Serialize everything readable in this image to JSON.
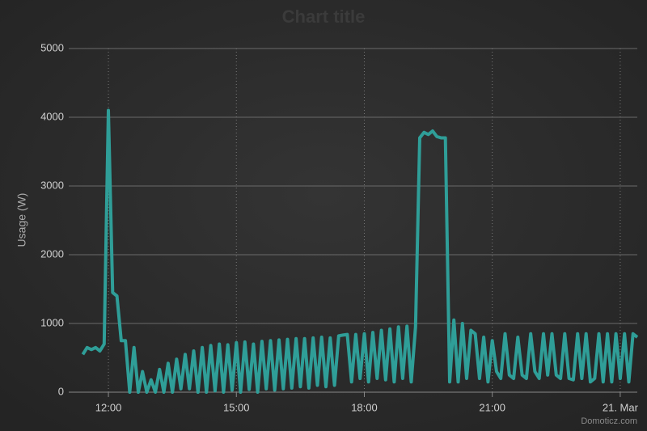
{
  "chart_data": {
    "type": "line",
    "title": "Chart title",
    "y_label": "Usage (W)",
    "credits": "Domoticz.com",
    "x": [
      11.4,
      11.5,
      11.6,
      11.7,
      11.8,
      11.9,
      12.0,
      12.1,
      12.2,
      12.3,
      12.4,
      12.5,
      12.6,
      12.7,
      12.8,
      12.9,
      13.0,
      13.1,
      13.2,
      13.3,
      13.4,
      13.5,
      13.6,
      13.7,
      13.8,
      13.9,
      14.0,
      14.1,
      14.2,
      14.3,
      14.4,
      14.5,
      14.6,
      14.7,
      14.8,
      14.9,
      15.0,
      15.1,
      15.2,
      15.3,
      15.4,
      15.5,
      15.6,
      15.7,
      15.8,
      15.9,
      16.0,
      16.1,
      16.2,
      16.3,
      16.4,
      16.5,
      16.6,
      16.7,
      16.8,
      16.9,
      17.0,
      17.1,
      17.2,
      17.3,
      17.4,
      17.5,
      17.6,
      17.7,
      17.8,
      17.9,
      18.0,
      18.1,
      18.2,
      18.3,
      18.4,
      18.5,
      18.6,
      18.7,
      18.8,
      18.9,
      19.0,
      19.1,
      19.2,
      19.3,
      19.4,
      19.5,
      19.6,
      19.7,
      19.8,
      19.9,
      20.0,
      20.1,
      20.2,
      20.3,
      20.4,
      20.5,
      20.6,
      20.7,
      20.8,
      20.9,
      21.0,
      21.1,
      21.2,
      21.3,
      21.4,
      21.5,
      21.6,
      21.7,
      21.8,
      21.9,
      22.0,
      22.1,
      22.2,
      22.3,
      22.4,
      22.5,
      22.6,
      22.7,
      22.8,
      22.9,
      23.0,
      23.1,
      23.2,
      23.3,
      23.4,
      23.5,
      23.6,
      23.7,
      23.8,
      23.9,
      24.0,
      24.1,
      24.2,
      24.3,
      24.4
    ],
    "series": [
      {
        "name": "Usage",
        "color": "#2f9e98",
        "values": [
          550,
          650,
          620,
          650,
          600,
          700,
          4100,
          1450,
          1400,
          750,
          750,
          0,
          650,
          0,
          300,
          0,
          180,
          0,
          330,
          0,
          420,
          0,
          480,
          50,
          550,
          50,
          600,
          0,
          650,
          0,
          680,
          20,
          700,
          0,
          690,
          30,
          720,
          0,
          730,
          40,
          700,
          0,
          740,
          50,
          750,
          30,
          760,
          50,
          770,
          60,
          780,
          80,
          780,
          60,
          790,
          100,
          800,
          80,
          790,
          100,
          820,
          830,
          840,
          150,
          840,
          200,
          850,
          150,
          870,
          200,
          900,
          180,
          920,
          150,
          950,
          200,
          960,
          150,
          950,
          3700,
          3780,
          3750,
          3800,
          3720,
          3700,
          3700,
          150,
          1050,
          150,
          1000,
          200,
          900,
          850,
          200,
          800,
          150,
          750,
          300,
          200,
          850,
          250,
          200,
          800,
          250,
          200,
          850,
          300,
          200,
          850,
          250,
          850,
          250,
          200,
          850,
          200,
          180,
          850,
          200,
          850,
          150,
          200,
          850,
          150,
          850,
          150,
          850,
          200,
          850,
          150,
          850,
          800
        ]
      }
    ],
    "xlim": [
      11.07,
      24.4
    ],
    "xticks": [
      {
        "value": 12,
        "label": "12:00"
      },
      {
        "value": 15,
        "label": "15:00"
      },
      {
        "value": 18,
        "label": "18:00"
      },
      {
        "value": 21,
        "label": "21:00"
      },
      {
        "value": 24,
        "label": "21. Mar"
      }
    ],
    "ylim": [
      0,
      5000
    ],
    "yticks": [
      0,
      1000,
      2000,
      3000,
      4000,
      5000
    ],
    "grid": true
  }
}
